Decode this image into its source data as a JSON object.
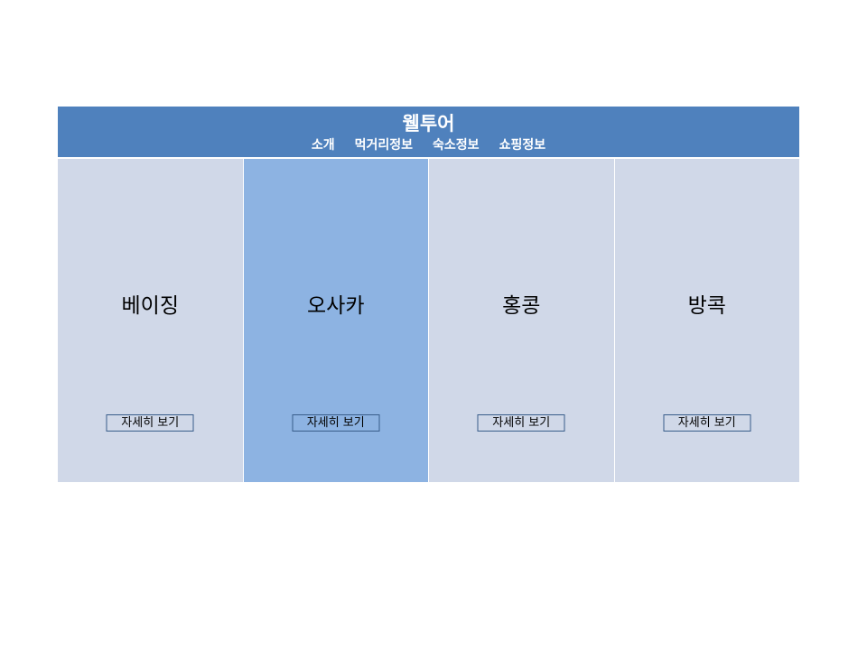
{
  "header": {
    "title": "웰투어",
    "nav": [
      "소개",
      "먹거리정보",
      "숙소정보",
      "쇼핑정보"
    ]
  },
  "colors": {
    "header_bg": "#4f81bd",
    "card_bg": "#d0d8e8",
    "card_active_bg": "#8db3e2",
    "button_border": "#385d8a"
  },
  "cards": [
    {
      "title": "베이징",
      "button": "자세히 보기",
      "active": false
    },
    {
      "title": "오사카",
      "button": "자세히 보기",
      "active": true
    },
    {
      "title": "홍콩",
      "button": "자세히 보기",
      "active": false
    },
    {
      "title": "방콕",
      "button": "자세히 보기",
      "active": false
    }
  ]
}
